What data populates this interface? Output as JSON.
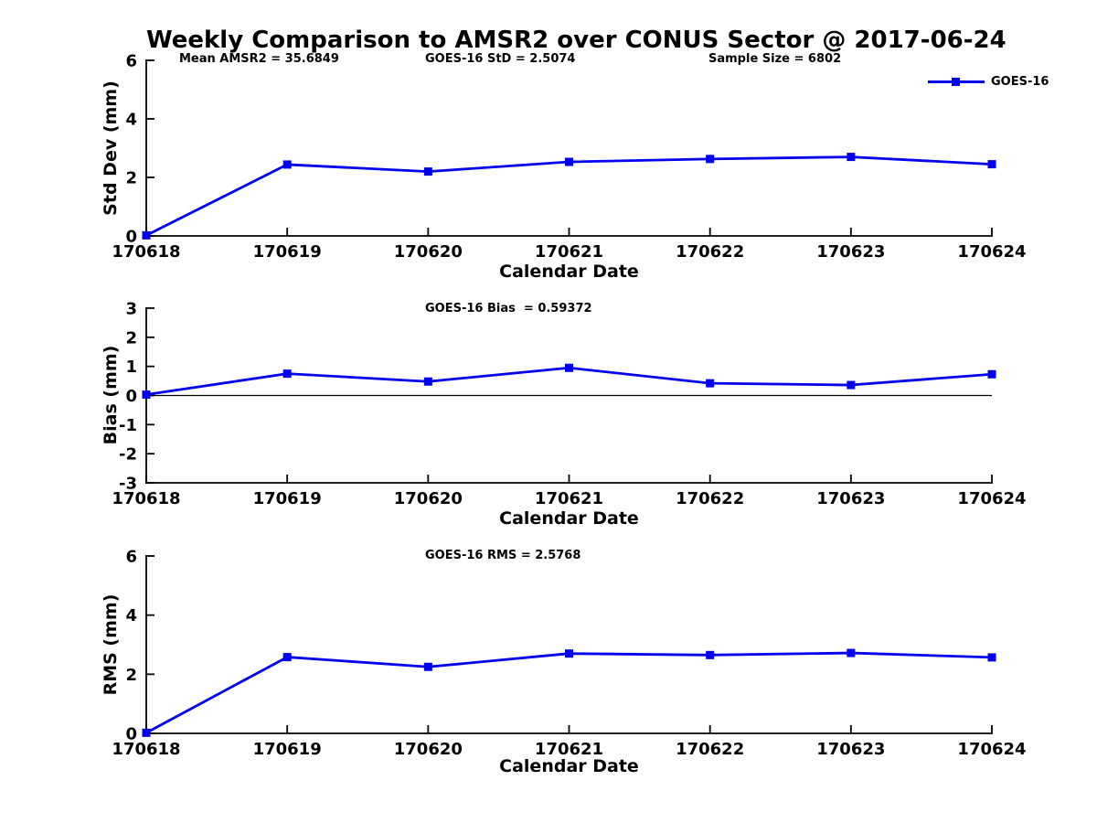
{
  "title": "Weekly Comparison to AMSR2 over CONUS Sector @ 2017-06-24",
  "colors": {
    "line": "#0000EE",
    "axis": "#000000",
    "text": "#000000",
    "background": "#FFFFFF"
  },
  "legend": {
    "label": "GOES-16"
  },
  "chart_data": [
    {
      "type": "line",
      "name": "std-dev",
      "annotations": [
        "Mean AMSR2 = 35.6849",
        "GOES-16 StD = 2.5074",
        "Sample Size = 6802"
      ],
      "categories": [
        "170618",
        "170619",
        "170620",
        "170621",
        "170622",
        "170623",
        "170624"
      ],
      "series": [
        {
          "name": "GOES-16",
          "values": [
            0.02,
            2.44,
            2.2,
            2.53,
            2.63,
            2.7,
            2.45
          ]
        }
      ],
      "xlabel": "Calendar Date",
      "ylabel": "Std Dev (mm)",
      "ylim": [
        0,
        6
      ],
      "yticks": [
        0,
        2,
        4,
        6
      ],
      "zero_line": false,
      "grid": false,
      "legend_position": "upper right",
      "marker": "square"
    },
    {
      "type": "line",
      "name": "bias",
      "annotation": "GOES-16 Bias  = 0.59372",
      "categories": [
        "170618",
        "170619",
        "170620",
        "170621",
        "170622",
        "170623",
        "170624"
      ],
      "series": [
        {
          "name": "GOES-16",
          "values": [
            0.03,
            0.75,
            0.48,
            0.95,
            0.42,
            0.36,
            0.73
          ]
        }
      ],
      "xlabel": "Calendar Date",
      "ylabel": "Bias (mm)",
      "ylim": [
        -3,
        3
      ],
      "yticks": [
        3,
        2,
        1,
        0,
        -1,
        -2,
        -3
      ],
      "zero_line": true,
      "grid": false,
      "marker": "square"
    },
    {
      "type": "line",
      "name": "rms",
      "annotation": "GOES-16 RMS = 2.5768",
      "categories": [
        "170618",
        "170619",
        "170620",
        "170621",
        "170622",
        "170623",
        "170624"
      ],
      "series": [
        {
          "name": "GOES-16",
          "values": [
            0.02,
            2.58,
            2.25,
            2.7,
            2.65,
            2.72,
            2.57
          ]
        }
      ],
      "xlabel": "Calendar Date",
      "ylabel": "RMS (mm)",
      "ylim": [
        0,
        6
      ],
      "yticks": [
        0,
        2,
        4,
        6
      ],
      "zero_line": false,
      "grid": false,
      "marker": "square"
    }
  ]
}
